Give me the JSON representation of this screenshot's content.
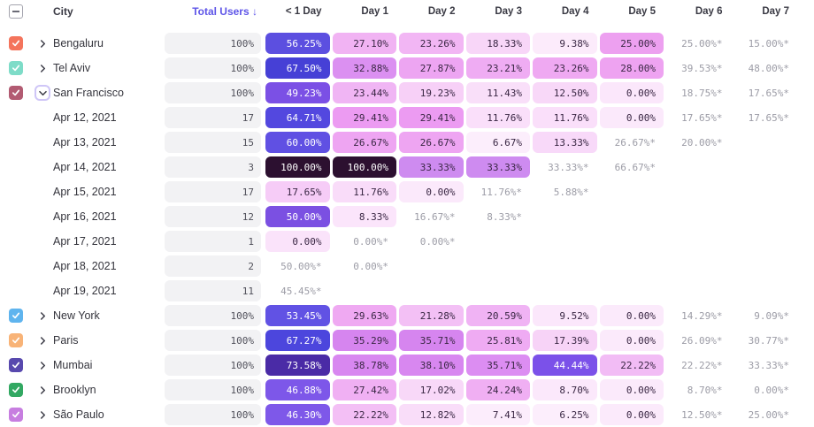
{
  "header": {
    "city_label": "City",
    "total_users_label": "Total Users ↓",
    "day_labels": [
      "< 1 Day",
      "Day 1",
      "Day 2",
      "Day 3",
      "Day 4",
      "Day 5",
      "Day 6",
      "Day 7"
    ],
    "select_all_state": "indeterminate"
  },
  "colors": {
    "accent_sorted_header": "#5E55E8",
    "dark_text": "#3A2744",
    "light_text": "#FFFFFF",
    "muted_text": "#9C9CA6",
    "pill_bg": "#F2F2F4",
    "chevron": "#3F3F4A",
    "expanded_ring": "#CFC6F7"
  },
  "rows": [
    {
      "type": "city",
      "label": "Bengaluru",
      "checked": true,
      "checkbox_color": "#F4745C",
      "expanded": false,
      "total": "100%",
      "cells": [
        {
          "v": "56.25%",
          "bg": "#5C4FE0",
          "fg": "light"
        },
        {
          "v": "27.10%",
          "bg": "#F1B3F3",
          "fg": "dark"
        },
        {
          "v": "23.26%",
          "bg": "#F2B6F4",
          "fg": "dark"
        },
        {
          "v": "18.33%",
          "bg": "#F8D6F8",
          "fg": "dark"
        },
        {
          "v": "9.38%",
          "bg": "#FCEBFB",
          "fg": "dark"
        },
        {
          "v": "25.00%",
          "bg": "#EDA0F0",
          "fg": "dark"
        },
        {
          "v": "25.00%*",
          "muted": true
        },
        {
          "v": "15.00%*",
          "muted": true
        }
      ]
    },
    {
      "type": "city",
      "label": "Tel Aviv",
      "checked": true,
      "checkbox_color": "#7EDCC8",
      "expanded": false,
      "total": "100%",
      "cells": [
        {
          "v": "67.50%",
          "bg": "#4640D6",
          "fg": "light"
        },
        {
          "v": "32.88%",
          "bg": "#DB90F1",
          "fg": "dark"
        },
        {
          "v": "27.87%",
          "bg": "#EDA5F2",
          "fg": "dark"
        },
        {
          "v": "23.21%",
          "bg": "#EFACF3",
          "fg": "dark"
        },
        {
          "v": "23.26%",
          "bg": "#EFA9F2",
          "fg": "dark"
        },
        {
          "v": "28.00%",
          "bg": "#EEA3F1",
          "fg": "dark"
        },
        {
          "v": "39.53%*",
          "muted": true
        },
        {
          "v": "48.00%*",
          "muted": true
        }
      ]
    },
    {
      "type": "city",
      "label": "San Francisco",
      "checked": true,
      "checkbox_color": "#B25B72",
      "expanded": true,
      "total": "100%",
      "cells": [
        {
          "v": "49.23%",
          "bg": "#7B50E5",
          "fg": "light"
        },
        {
          "v": "23.44%",
          "bg": "#F0B5F4",
          "fg": "dark"
        },
        {
          "v": "19.23%",
          "bg": "#F7D0F7",
          "fg": "dark"
        },
        {
          "v": "11.43%",
          "bg": "#F9DFF9",
          "fg": "dark"
        },
        {
          "v": "12.50%",
          "bg": "#F8D8F8",
          "fg": "dark"
        },
        {
          "v": "0.00%",
          "bg": "#FBE7FB",
          "fg": "dark"
        },
        {
          "v": "18.75%*",
          "muted": true
        },
        {
          "v": "17.65%*",
          "muted": true
        }
      ]
    },
    {
      "type": "date",
      "label": "Apr 12, 2021",
      "total": "17",
      "cells": [
        {
          "v": "64.71%",
          "bg": "#5348DF",
          "fg": "light"
        },
        {
          "v": "29.41%",
          "bg": "#EC9BF2",
          "fg": "dark"
        },
        {
          "v": "29.41%",
          "bg": "#EC9BF2",
          "fg": "dark"
        },
        {
          "v": "11.76%",
          "bg": "#FADFFA",
          "fg": "dark"
        },
        {
          "v": "11.76%",
          "bg": "#FADFFA",
          "fg": "dark"
        },
        {
          "v": "0.00%",
          "bg": "#FBE9FB",
          "fg": "dark"
        },
        {
          "v": "17.65%*",
          "muted": true
        },
        {
          "v": "17.65%*",
          "muted": true
        }
      ]
    },
    {
      "type": "date",
      "label": "Apr 13, 2021",
      "total": "15",
      "cells": [
        {
          "v": "60.00%",
          "bg": "#6050E3",
          "fg": "light"
        },
        {
          "v": "26.67%",
          "bg": "#EEA5F2",
          "fg": "dark"
        },
        {
          "v": "26.67%",
          "bg": "#EEA5F2",
          "fg": "dark"
        },
        {
          "v": "6.67%",
          "bg": "#FCEEFC",
          "fg": "dark"
        },
        {
          "v": "13.33%",
          "bg": "#F8D9F9",
          "fg": "dark"
        },
        {
          "v": "26.67%*",
          "muted": true
        },
        {
          "v": "20.00%*",
          "muted": true
        },
        null
      ]
    },
    {
      "type": "date",
      "label": "Apr 14, 2021",
      "total": "3",
      "cells": [
        {
          "v": "100.00%",
          "bg": "#2C1030",
          "fg": "light"
        },
        {
          "v": "100.00%",
          "bg": "#2C1030",
          "fg": "light"
        },
        {
          "v": "33.33%",
          "bg": "#CE8BF0",
          "fg": "dark"
        },
        {
          "v": "33.33%",
          "bg": "#CE8BF0",
          "fg": "dark"
        },
        {
          "v": "33.33%*",
          "muted": true
        },
        {
          "v": "66.67%*",
          "muted": true
        },
        null,
        null
      ]
    },
    {
      "type": "date",
      "label": "Apr 15, 2021",
      "total": "17",
      "cells": [
        {
          "v": "17.65%",
          "bg": "#F6CCF7",
          "fg": "dark"
        },
        {
          "v": "11.76%",
          "bg": "#F9DCF9",
          "fg": "dark"
        },
        {
          "v": "0.00%",
          "bg": "#FBE9FB",
          "fg": "dark"
        },
        {
          "v": "11.76%*",
          "muted": true
        },
        {
          "v": "5.88%*",
          "muted": true
        },
        null,
        null,
        null
      ]
    },
    {
      "type": "date",
      "label": "Apr 16, 2021",
      "total": "12",
      "cells": [
        {
          "v": "50.00%",
          "bg": "#7B50E2",
          "fg": "light"
        },
        {
          "v": "8.33%",
          "bg": "#FBE5FB",
          "fg": "dark"
        },
        {
          "v": "16.67%*",
          "muted": true
        },
        {
          "v": "8.33%*",
          "muted": true
        },
        null,
        null,
        null,
        null
      ]
    },
    {
      "type": "date",
      "label": "Apr 17, 2021",
      "total": "1",
      "cells": [
        {
          "v": "0.00%",
          "bg": "#FAE3FA",
          "fg": "dark"
        },
        {
          "v": "0.00%*",
          "muted": true
        },
        {
          "v": "0.00%*",
          "muted": true
        },
        null,
        null,
        null,
        null,
        null
      ]
    },
    {
      "type": "date",
      "label": "Apr 18, 2021",
      "total": "2",
      "cells": [
        {
          "v": "50.00%*",
          "muted": true
        },
        {
          "v": "0.00%*",
          "muted": true
        },
        null,
        null,
        null,
        null,
        null,
        null
      ]
    },
    {
      "type": "date",
      "label": "Apr 19, 2021",
      "total": "11",
      "cells": [
        {
          "v": "45.45%*",
          "muted": true
        },
        null,
        null,
        null,
        null,
        null,
        null,
        null
      ]
    },
    {
      "type": "city",
      "label": "New York",
      "checked": true,
      "checkbox_color": "#5FB4EE",
      "expanded": false,
      "total": "100%",
      "cells": [
        {
          "v": "53.45%",
          "bg": "#6152E4",
          "fg": "light"
        },
        {
          "v": "29.63%",
          "bg": "#EFA9F2",
          "fg": "dark"
        },
        {
          "v": "21.28%",
          "bg": "#F3C0F5",
          "fg": "dark"
        },
        {
          "v": "20.59%",
          "bg": "#F0B3F4",
          "fg": "dark"
        },
        {
          "v": "9.52%",
          "bg": "#FBE7FB",
          "fg": "dark"
        },
        {
          "v": "0.00%",
          "bg": "#FBEAFB",
          "fg": "dark"
        },
        {
          "v": "14.29%*",
          "muted": true
        },
        {
          "v": "9.09%*",
          "muted": true
        }
      ]
    },
    {
      "type": "city",
      "label": "Paris",
      "checked": true,
      "checkbox_color": "#F8B377",
      "expanded": false,
      "total": "100%",
      "cells": [
        {
          "v": "67.27%",
          "bg": "#4C46DD",
          "fg": "light"
        },
        {
          "v": "35.29%",
          "bg": "#D685EF",
          "fg": "dark"
        },
        {
          "v": "35.71%",
          "bg": "#D685EF",
          "fg": "dark"
        },
        {
          "v": "25.81%",
          "bg": "#EFABF3",
          "fg": "dark"
        },
        {
          "v": "17.39%",
          "bg": "#F7D3F7",
          "fg": "dark"
        },
        {
          "v": "0.00%",
          "bg": "#FBEAFB",
          "fg": "dark"
        },
        {
          "v": "26.09%*",
          "muted": true
        },
        {
          "v": "30.77%*",
          "muted": true
        }
      ]
    },
    {
      "type": "city",
      "label": "Mumbai",
      "checked": true,
      "checkbox_color": "#5849AE",
      "expanded": false,
      "total": "100%",
      "cells": [
        {
          "v": "73.58%",
          "bg": "#4A2BA6",
          "fg": "light"
        },
        {
          "v": "38.78%",
          "bg": "#D887F0",
          "fg": "dark"
        },
        {
          "v": "38.10%",
          "bg": "#D887F0",
          "fg": "dark"
        },
        {
          "v": "35.71%",
          "bg": "#DC8DF2",
          "fg": "dark"
        },
        {
          "v": "44.44%",
          "bg": "#7B51E9",
          "fg": "light"
        },
        {
          "v": "22.22%",
          "bg": "#F2BCF5",
          "fg": "dark"
        },
        {
          "v": "22.22%*",
          "muted": true
        },
        {
          "v": "33.33%*",
          "muted": true
        }
      ]
    },
    {
      "type": "city",
      "label": "Brooklyn",
      "checked": true,
      "checkbox_color": "#32A862",
      "expanded": false,
      "total": "100%",
      "cells": [
        {
          "v": "46.88%",
          "bg": "#7D57E9",
          "fg": "light"
        },
        {
          "v": "27.42%",
          "bg": "#F0B0F3",
          "fg": "dark"
        },
        {
          "v": "17.02%",
          "bg": "#F8D8F8",
          "fg": "dark"
        },
        {
          "v": "24.24%",
          "bg": "#F0AFF3",
          "fg": "dark"
        },
        {
          "v": "8.70%",
          "bg": "#FBE8FB",
          "fg": "dark"
        },
        {
          "v": "0.00%",
          "bg": "#FBEAFB",
          "fg": "dark"
        },
        {
          "v": "8.70%*",
          "muted": true
        },
        {
          "v": "0.00%*",
          "muted": true
        }
      ]
    },
    {
      "type": "city",
      "label": "São Paulo",
      "checked": true,
      "checkbox_color": "#C77EE0",
      "expanded": false,
      "total": "100%",
      "cells": [
        {
          "v": "46.30%",
          "bg": "#7E58E9",
          "fg": "light"
        },
        {
          "v": "22.22%",
          "bg": "#F3BFF5",
          "fg": "dark"
        },
        {
          "v": "12.82%",
          "bg": "#F9DDF9",
          "fg": "dark"
        },
        {
          "v": "7.41%",
          "bg": "#FCEDFC",
          "fg": "dark"
        },
        {
          "v": "6.25%",
          "bg": "#FCEEFC",
          "fg": "dark"
        },
        {
          "v": "0.00%",
          "bg": "#FBEAFB",
          "fg": "dark"
        },
        {
          "v": "12.50%*",
          "muted": true
        },
        {
          "v": "25.00%*",
          "muted": true
        }
      ]
    }
  ]
}
